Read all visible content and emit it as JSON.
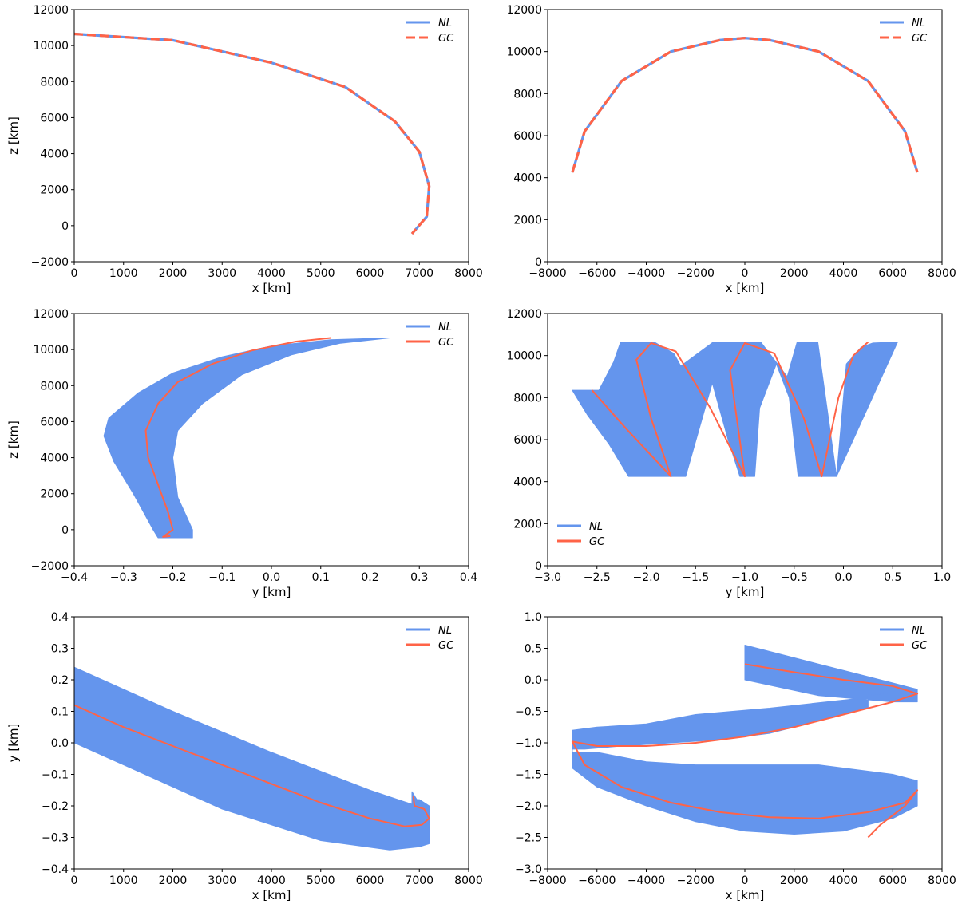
{
  "chart_data": [
    {
      "id": "p1",
      "type": "line",
      "xlabel": "x [km]",
      "ylabel": "z [km]",
      "xlim": [
        0,
        8000
      ],
      "ylim": [
        -2000,
        12000
      ],
      "xticks": [
        0,
        1000,
        2000,
        3000,
        4000,
        5000,
        6000,
        7000,
        8000
      ],
      "yticks": [
        -2000,
        0,
        2000,
        4000,
        6000,
        8000,
        10000,
        12000
      ],
      "xtick_labels": [
        "0",
        "1000",
        "2000",
        "3000",
        "4000",
        "5000",
        "6000",
        "7000",
        "8000"
      ],
      "ytick_labels": [
        "−2000",
        "0",
        "2000",
        "4000",
        "6000",
        "8000",
        "10000",
        "12000"
      ],
      "legend": "top-right",
      "legend_style": "dashed",
      "series": [
        {
          "name": "NL",
          "color": "#6495ED",
          "style": "solid",
          "x": [
            0,
            2000,
            4000,
            5500,
            6500,
            7000,
            7200,
            7150,
            6850
          ],
          "y": [
            10650,
            10300,
            9050,
            7700,
            5800,
            4100,
            2200,
            500,
            -450
          ]
        },
        {
          "name": "GC",
          "color": "#FF6347",
          "style": "dashed",
          "x": [
            0,
            2000,
            4000,
            5500,
            6500,
            7000,
            7200,
            7150,
            6850
          ],
          "y": [
            10650,
            10300,
            9050,
            7700,
            5800,
            4100,
            2200,
            500,
            -450
          ]
        }
      ]
    },
    {
      "id": "p2",
      "type": "line",
      "xlabel": "x [km]",
      "ylabel": "",
      "xlim": [
        -8000,
        8000
      ],
      "ylim": [
        0,
        12000
      ],
      "xticks": [
        -8000,
        -6000,
        -4000,
        -2000,
        0,
        2000,
        4000,
        6000,
        8000
      ],
      "yticks": [
        0,
        2000,
        4000,
        6000,
        8000,
        10000,
        12000
      ],
      "xtick_labels": [
        "−8000",
        "−6000",
        "−4000",
        "−2000",
        "0",
        "2000",
        "4000",
        "6000",
        "8000"
      ],
      "ytick_labels": [
        "0",
        "2000",
        "4000",
        "6000",
        "8000",
        "10000",
        "12000"
      ],
      "legend": "top-right",
      "legend_style": "dashed",
      "series": [
        {
          "name": "NL",
          "color": "#6495ED",
          "style": "solid",
          "x": [
            -7000,
            -6500,
            -5000,
            -3000,
            -1000,
            0,
            1000,
            3000,
            5000,
            6500,
            7000
          ],
          "y": [
            4250,
            6200,
            8600,
            10000,
            10550,
            10650,
            10550,
            10000,
            8600,
            6200,
            4250
          ]
        },
        {
          "name": "GC",
          "color": "#FF6347",
          "style": "dashed",
          "x": [
            -7000,
            -6500,
            -5000,
            -3000,
            -1000,
            0,
            1000,
            3000,
            5000,
            6500,
            7000
          ],
          "y": [
            4250,
            6200,
            8600,
            10000,
            10550,
            10650,
            10550,
            10000,
            8600,
            6200,
            4250
          ]
        }
      ]
    },
    {
      "id": "p3",
      "type": "area",
      "xlabel": "y [km]",
      "ylabel": "z [km]",
      "xlim": [
        -0.4,
        0.4
      ],
      "ylim": [
        -2000,
        12000
      ],
      "xticks": [
        -0.4,
        -0.3,
        -0.2,
        -0.1,
        0,
        0.1,
        0.2,
        0.3,
        0.4
      ],
      "yticks": [
        -2000,
        0,
        2000,
        4000,
        6000,
        8000,
        10000,
        12000
      ],
      "xtick_labels": [
        "−0.4",
        "−0.3",
        "−0.2",
        "−0.1",
        "0.0",
        "0.1",
        "0.2",
        "0.3",
        "0.4"
      ],
      "ytick_labels": [
        "−2000",
        "0",
        "2000",
        "4000",
        "6000",
        "8000",
        "10000",
        "12000"
      ],
      "legend": "top-right",
      "legend_style": "solid",
      "series": [
        {
          "name": "NL",
          "color": "#6495ED",
          "style": "band",
          "x": [
            0.24,
            0.12,
            0.0,
            -0.1,
            -0.2,
            -0.27,
            -0.33,
            -0.34,
            -0.32,
            -0.28,
            -0.24,
            -0.23,
            -0.16,
            -0.16,
            -0.19,
            -0.2,
            -0.19,
            -0.14,
            -0.06,
            0.04,
            0.14,
            0.24
          ],
          "y": [
            10650,
            10550,
            10200,
            9600,
            8700,
            7600,
            6200,
            5200,
            3800,
            2000,
            0,
            -450,
            -450,
            0,
            1800,
            4000,
            5500,
            7000,
            8600,
            9700,
            10350,
            10650
          ]
        },
        {
          "name": "GC",
          "color": "#FF6347",
          "style": "solid",
          "x": [
            0.12,
            0.05,
            -0.04,
            -0.12,
            -0.19,
            -0.23,
            -0.255,
            -0.25,
            -0.23,
            -0.21,
            -0.2,
            -0.22,
            -0.205
          ],
          "y": [
            10650,
            10450,
            9950,
            9200,
            8200,
            7000,
            5500,
            4000,
            2500,
            1000,
            0,
            -400,
            -350
          ]
        }
      ]
    },
    {
      "id": "p4",
      "type": "area",
      "xlabel": "y [km]",
      "ylabel": "",
      "xlim": [
        -3.0,
        1.0
      ],
      "ylim": [
        0,
        12000
      ],
      "xticks": [
        -3.0,
        -2.5,
        -2.0,
        -1.5,
        -1.0,
        -0.5,
        0.0,
        0.5,
        1.0
      ],
      "yticks": [
        0,
        2000,
        4000,
        6000,
        8000,
        10000,
        12000
      ],
      "xtick_labels": [
        "−3.0",
        "−2.5",
        "−2.0",
        "−1.5",
        "−1.0",
        "−0.5",
        "0.0",
        "0.5",
        "1.0"
      ],
      "ytick_labels": [
        "0",
        "2000",
        "4000",
        "6000",
        "8000",
        "10000",
        "12000"
      ],
      "legend": "bottom-left",
      "legend_style": "solid",
      "series": [
        {
          "name": "NL",
          "color": "#6495ED",
          "style": "band",
          "x": [
            -2.75,
            -2.48,
            -2.33,
            -2.26,
            -1.92,
            -1.72,
            -1.65,
            -1.32,
            -1.22,
            -1.05,
            -0.97,
            -0.84,
            -0.57,
            -0.47,
            -0.32,
            -0.26,
            -0.07,
            0.55,
            0.3,
            0.18,
            0.03,
            -0.07,
            -0.28,
            -0.46,
            -0.55,
            -0.68,
            -0.85,
            -0.9,
            -1.05,
            -1.17,
            -1.33,
            -1.6,
            -1.78,
            -1.98,
            -2.18,
            -2.38,
            -2.6,
            -2.75
          ],
          "y": [
            8350,
            8350,
            9700,
            10650,
            10650,
            10100,
            9500,
            10650,
            10650,
            10650,
            10650,
            10650,
            9000,
            10650,
            10650,
            10650,
            4250,
            10650,
            10600,
            10400,
            9600,
            4250,
            4250,
            4250,
            8000,
            9600,
            7500,
            4250,
            4250,
            6000,
            8700,
            4250,
            4250,
            4250,
            4250,
            5800,
            7200,
            8350
          ]
        },
        {
          "name": "GC",
          "color": "#FF6347",
          "style": "solid",
          "x": [
            -2.55,
            -2.2,
            -1.75,
            -1.95,
            -2.1,
            -1.95,
            -1.7,
            -1.35,
            -1.0,
            -1.15,
            -1.0,
            -0.7,
            -0.4,
            -0.22,
            -0.05,
            0.1,
            0.25
          ],
          "y": [
            8350,
            6500,
            4250,
            7000,
            9800,
            10600,
            10200,
            7500,
            4250,
            9300,
            10600,
            10100,
            7000,
            4250,
            8000,
            10000,
            10650
          ]
        }
      ]
    },
    {
      "id": "p5",
      "type": "area",
      "xlabel": "x [km]",
      "ylabel": "y [km]",
      "xlim": [
        0,
        8000
      ],
      "ylim": [
        -0.4,
        0.4
      ],
      "xticks": [
        0,
        1000,
        2000,
        3000,
        4000,
        5000,
        6000,
        7000,
        8000
      ],
      "yticks": [
        -0.4,
        -0.3,
        -0.2,
        -0.1,
        0.0,
        0.1,
        0.2,
        0.3,
        0.4
      ],
      "xtick_labels": [
        "0",
        "1000",
        "2000",
        "3000",
        "4000",
        "5000",
        "6000",
        "7000",
        "8000"
      ],
      "ytick_labels": [
        "−0.4",
        "−0.3",
        "−0.2",
        "−0.1",
        "0.0",
        "0.1",
        "0.2",
        "0.3",
        "0.4"
      ],
      "legend": "top-right",
      "legend_style": "solid",
      "series": [
        {
          "name": "NL",
          "color": "#6495ED",
          "style": "band",
          "x": [
            0,
            2000,
            4000,
            6000,
            6850,
            6850,
            6950,
            7000,
            7200,
            7200,
            7000,
            6400,
            5000,
            3000,
            1000,
            0
          ],
          "y": [
            0.24,
            0.1,
            -0.03,
            -0.15,
            -0.195,
            -0.155,
            -0.18,
            -0.18,
            -0.2,
            -0.32,
            -0.33,
            -0.34,
            -0.31,
            -0.21,
            -0.07,
            0.0
          ]
        },
        {
          "name": "GC",
          "color": "#FF6347",
          "style": "solid",
          "x": [
            0,
            1000,
            2000,
            3000,
            4000,
            5000,
            6000,
            6700,
            7050,
            7200,
            7100,
            6900,
            6880
          ],
          "y": [
            0.12,
            0.05,
            -0.01,
            -0.07,
            -0.13,
            -0.19,
            -0.24,
            -0.265,
            -0.26,
            -0.24,
            -0.21,
            -0.2,
            -0.17
          ]
        }
      ]
    },
    {
      "id": "p6",
      "type": "area",
      "xlabel": "x [km]",
      "ylabel": "",
      "xlim": [
        -8000,
        8000
      ],
      "ylim": [
        -3.0,
        1.0
      ],
      "xticks": [
        -8000,
        -6000,
        -4000,
        -2000,
        0,
        2000,
        4000,
        6000,
        8000
      ],
      "yticks": [
        -3.0,
        -2.5,
        -2.0,
        -1.5,
        -1.0,
        -0.5,
        0.0,
        0.5,
        1.0
      ],
      "xtick_labels": [
        "−8000",
        "−6000",
        "−4000",
        "−2000",
        "0",
        "2000",
        "4000",
        "6000",
        "8000"
      ],
      "ytick_labels": [
        "−3.0",
        "−2.5",
        "−2.0",
        "−1.5",
        "−1.0",
        "−0.5",
        "0.0",
        "0.5",
        "1.0"
      ],
      "legend": "top-right",
      "legend_style": "solid",
      "series": [
        {
          "name": "NL",
          "color": "#6495ED",
          "style": "band",
          "x": [
            0,
            3000,
            6000,
            7000,
            7000,
            6000,
            4500,
            1000,
            -2000,
            -4000,
            -6000,
            -7000,
            -7000,
            -6000,
            -4000,
            -2000,
            0,
            3000,
            6000,
            7000,
            7000,
            6000,
            4000,
            2000,
            0,
            -2000,
            -4000,
            -6000,
            -7000,
            -7000,
            -6500,
            -5000,
            -3000,
            -1000,
            1000,
            3000,
            5000,
            5000,
            6000,
            7000,
            7000,
            6000,
            3000,
            0,
            0
          ],
          "y": [
            0.55,
            0.25,
            -0.05,
            -0.15,
            -0.35,
            -0.3,
            -0.3,
            -0.45,
            -0.55,
            -0.7,
            -0.75,
            -0.8,
            -1.15,
            -1.15,
            -1.3,
            -1.35,
            -1.35,
            -1.35,
            -1.5,
            -1.6,
            -2.0,
            -2.2,
            -2.4,
            -2.45,
            -2.4,
            -2.25,
            -2.0,
            -1.7,
            -1.4,
            -1.1,
            -1.1,
            -1.05,
            -1.0,
            -0.95,
            -0.85,
            -0.65,
            -0.45,
            -0.25,
            -0.2,
            -0.2,
            -0.35,
            -0.35,
            -0.25,
            0.0,
            0.55
          ]
        },
        {
          "name": "GC",
          "color": "#FF6347",
          "style": "solid",
          "x": [
            0,
            2000,
            4000,
            6000,
            7000,
            6000,
            4000,
            2000,
            0,
            -2000,
            -4000,
            -6000,
            -7000,
            -6500,
            -5000,
            -3000,
            -1000,
            1000,
            3000,
            5000,
            6500,
            7000,
            6500,
            5500,
            5000
          ],
          "y": [
            0.25,
            0.12,
            0.0,
            -0.1,
            -0.22,
            -0.35,
            -0.55,
            -0.75,
            -0.9,
            -1.0,
            -1.05,
            -1.05,
            -0.98,
            -1.35,
            -1.7,
            -1.95,
            -2.1,
            -2.18,
            -2.2,
            -2.1,
            -1.95,
            -1.75,
            -2.0,
            -2.3,
            -2.5
          ]
        }
      ]
    }
  ]
}
